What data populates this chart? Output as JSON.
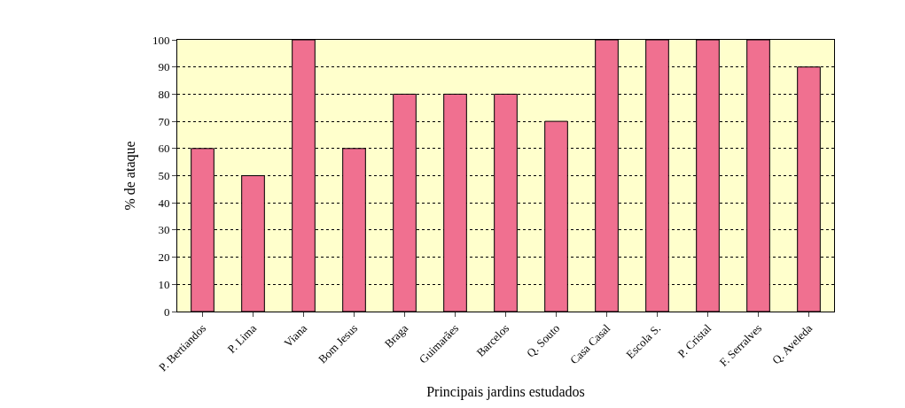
{
  "chart_data": {
    "type": "bar",
    "xlabel": "Principais jardins estudados",
    "ylabel": "% de ataque",
    "categories": [
      "P. Bertiandos",
      "P. Lima",
      "Viana",
      "Bom Jesus",
      "Braga",
      "Guimarães",
      "Barcelos",
      "Q. Souto",
      "Casa Casal",
      "Escola S.",
      "P. Cristal",
      "F. Serralves",
      "Q. Aveleda"
    ],
    "values": [
      60,
      50,
      100,
      60,
      80,
      80,
      80,
      70,
      100,
      100,
      100,
      100,
      90
    ],
    "color": "#f07090",
    "ylim": [
      0,
      100
    ],
    "yticks": [
      0,
      10,
      20,
      30,
      40,
      50,
      60,
      70,
      80,
      90,
      100
    ],
    "grid": "y"
  }
}
